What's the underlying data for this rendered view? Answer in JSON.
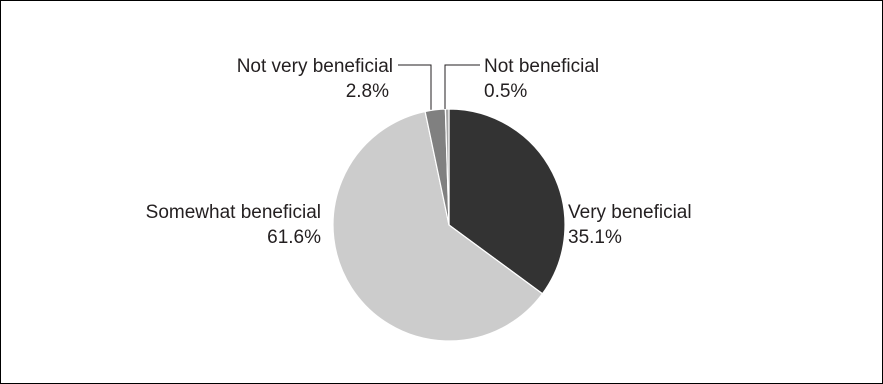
{
  "chart_data": {
    "type": "pie",
    "title": "",
    "slices": [
      {
        "label": "Very beneficial",
        "value": 35.1,
        "value_label": "35.1%",
        "color": "#333333"
      },
      {
        "label": "Somewhat beneficial",
        "value": 61.6,
        "value_label": "61.6%",
        "color": "#cccccc"
      },
      {
        "label": "Not very beneficial",
        "value": 2.8,
        "value_label": "2.8%",
        "color": "#808080"
      },
      {
        "label": "Not beneficial",
        "value": 0.5,
        "value_label": "0.5%",
        "color": "#a6a6a6"
      }
    ],
    "start_angle": "12 o'clock",
    "direction": "clockwise",
    "slice_border": "#ffffff",
    "legend": "none"
  }
}
